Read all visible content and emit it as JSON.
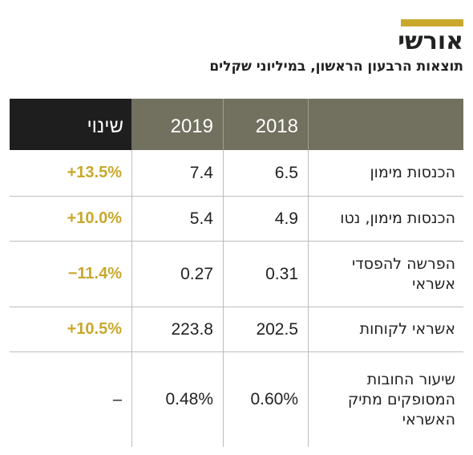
{
  "header": {
    "title": "אורשי",
    "subtitle": "תוצאות הרבעון הראשון, במיליוני שקלים"
  },
  "colors": {
    "accent": "#c9a82c",
    "header_dark": "#1e1e1e",
    "header_gray": "#72705f"
  },
  "table": {
    "columns": {
      "label": "",
      "y2018": "2018",
      "y2019": "2019",
      "change": "שינוי"
    },
    "rows": [
      {
        "label": "הכנסות מימון",
        "y2018": "6.5",
        "y2019": "7.4",
        "change": "+13.5%"
      },
      {
        "label": "הכנסות מימון, נטו",
        "y2018": "4.9",
        "y2019": "5.4",
        "change": "+10.0%"
      },
      {
        "label": "הפרשה להפסדי אשראי",
        "y2018": "0.31",
        "y2019": "0.27",
        "change": "−11.4%"
      },
      {
        "label": "אשראי לקוחות",
        "y2018": "202.5",
        "y2019": "223.8",
        "change": "+10.5%"
      },
      {
        "label": "שיעור החובות המסופקים מתיק האשראי",
        "y2018": "0.60%",
        "y2019": "0.48%",
        "change": "–"
      }
    ]
  }
}
